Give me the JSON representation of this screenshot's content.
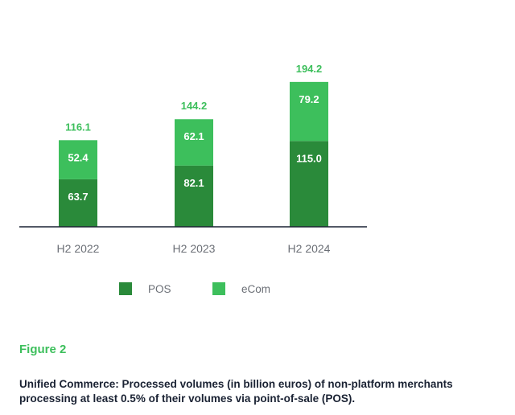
{
  "chart_data": {
    "type": "bar",
    "stacked": true,
    "categories": [
      "H2 2022",
      "H2 2023",
      "H2 2024"
    ],
    "series": [
      {
        "name": "POS",
        "values": [
          63.7,
          82.1,
          115.0
        ],
        "color": "#2a8a3a"
      },
      {
        "name": "eCom",
        "values": [
          52.4,
          62.1,
          79.2
        ],
        "color": "#3dbf5c"
      }
    ],
    "totals": [
      116.1,
      144.2,
      194.2
    ],
    "total_label_color": "#3dbf5c",
    "legend_position": "bottom"
  },
  "figure_label": "Figure 2",
  "caption": "Unified Commerce: Processed volumes (in billion euros) of non-platform merchants processing at least 0.5% of their volumes via point-of-sale (POS)."
}
